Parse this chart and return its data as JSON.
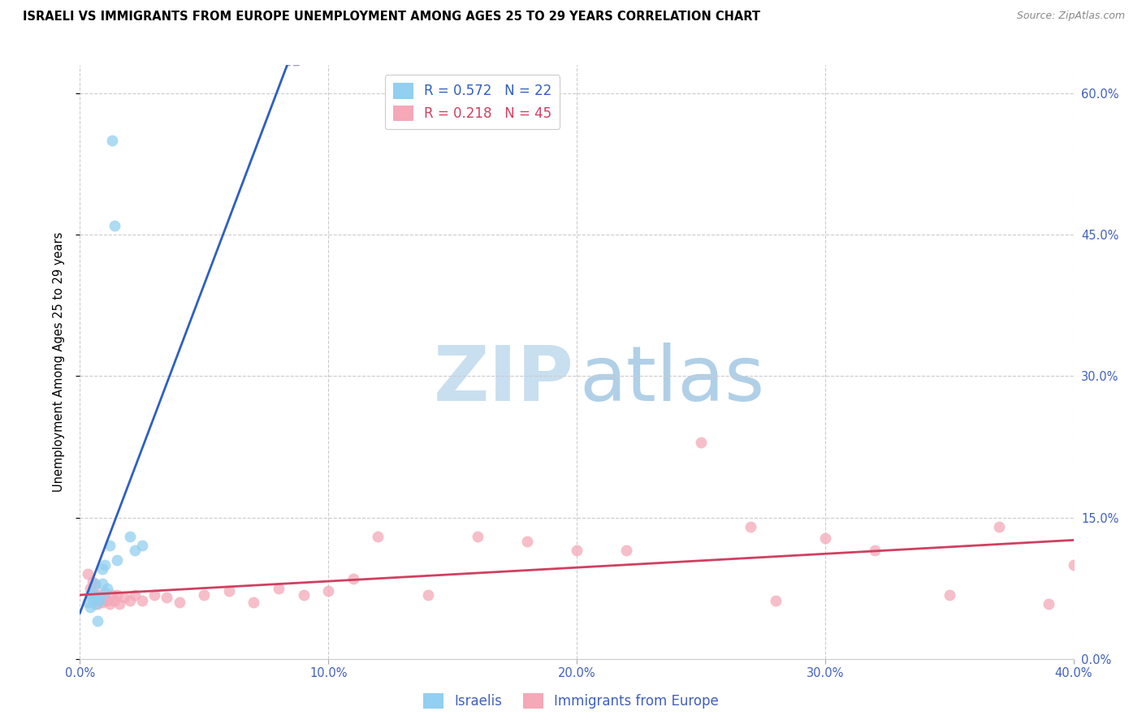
{
  "title": "ISRAELI VS IMMIGRANTS FROM EUROPE UNEMPLOYMENT AMONG AGES 25 TO 29 YEARS CORRELATION CHART",
  "source": "Source: ZipAtlas.com",
  "ylabel": "Unemployment Among Ages 25 to 29 years",
  "xlim": [
    0.0,
    0.4
  ],
  "ylim": [
    0.0,
    0.63
  ],
  "yticks": [
    0.0,
    0.15,
    0.3,
    0.45,
    0.6
  ],
  "ytick_labels": [
    "0.0%",
    "15.0%",
    "30.0%",
    "45.0%",
    "60.0%"
  ],
  "xticks": [
    0.0,
    0.1,
    0.2,
    0.3,
    0.4
  ],
  "xtick_labels": [
    "0.0%",
    "10.0%",
    "20.0%",
    "30.0%",
    "40.0%"
  ],
  "legend_R1": "0.572",
  "legend_N1": "22",
  "legend_R2": "0.218",
  "legend_N2": "45",
  "legend_label1": "Israelis",
  "legend_label2": "Immigrants from Europe",
  "color_israeli": "#92CFF0",
  "color_europe": "#F4A8B8",
  "color_line1": "#3060C0",
  "color_line2": "#D04060",
  "color_dashed": "#A0A0C0",
  "color_tick": "#4060C0",
  "watermark_zip_color": "#C8DFF0",
  "watermark_atlas_color": "#B0D0E8",
  "israelis_x": [
    0.003,
    0.004,
    0.004,
    0.005,
    0.005,
    0.006,
    0.006,
    0.007,
    0.007,
    0.008,
    0.009,
    0.009,
    0.01,
    0.01,
    0.011,
    0.012,
    0.013,
    0.014,
    0.015,
    0.02,
    0.022,
    0.025
  ],
  "israelis_y": [
    0.06,
    0.055,
    0.068,
    0.062,
    0.07,
    0.058,
    0.08,
    0.065,
    0.04,
    0.062,
    0.08,
    0.095,
    0.07,
    0.1,
    0.075,
    0.12,
    0.55,
    0.46,
    0.105,
    0.13,
    0.115,
    0.12
  ],
  "europe_x": [
    0.003,
    0.004,
    0.005,
    0.006,
    0.006,
    0.007,
    0.008,
    0.008,
    0.009,
    0.01,
    0.011,
    0.012,
    0.013,
    0.014,
    0.015,
    0.016,
    0.018,
    0.02,
    0.022,
    0.025,
    0.03,
    0.035,
    0.04,
    0.05,
    0.06,
    0.07,
    0.08,
    0.09,
    0.1,
    0.11,
    0.12,
    0.14,
    0.16,
    0.18,
    0.2,
    0.22,
    0.25,
    0.27,
    0.28,
    0.3,
    0.32,
    0.35,
    0.37,
    0.39,
    0.4
  ],
  "europe_y": [
    0.09,
    0.075,
    0.082,
    0.068,
    0.078,
    0.058,
    0.062,
    0.068,
    0.06,
    0.065,
    0.062,
    0.058,
    0.068,
    0.062,
    0.068,
    0.058,
    0.065,
    0.062,
    0.068,
    0.062,
    0.068,
    0.065,
    0.06,
    0.068,
    0.072,
    0.06,
    0.075,
    0.068,
    0.072,
    0.085,
    0.13,
    0.068,
    0.13,
    0.125,
    0.115,
    0.115,
    0.23,
    0.14,
    0.062,
    0.128,
    0.115,
    0.068,
    0.14,
    0.058,
    0.1
  ]
}
